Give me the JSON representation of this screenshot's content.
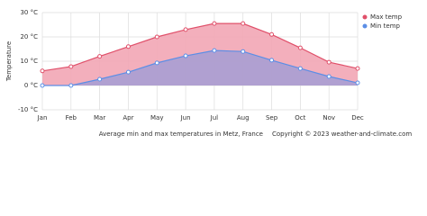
{
  "chart_data": {
    "type": "line",
    "y_label": "Temperature",
    "caption": "Average min and max temperatures in Metz, France",
    "copyright": "Copyright © 2023  weather-and-climate.com",
    "categories": [
      "Jan",
      "Feb",
      "Mar",
      "Apr",
      "May",
      "Jun",
      "Jul",
      "Aug",
      "Sep",
      "Oct",
      "Nov",
      "Dec"
    ],
    "series": [
      {
        "name": "Max temp",
        "color": "#e0506a",
        "fill": "#f2a6b5",
        "values": [
          6,
          7.8,
          12,
          16,
          20,
          23,
          25.5,
          25.5,
          21,
          15.5,
          9.6,
          7
        ]
      },
      {
        "name": "Min temp",
        "color": "#5b8ee6",
        "fill": "#a99fd3",
        "values": [
          0,
          0,
          2.6,
          5.5,
          9.3,
          12.2,
          14.4,
          14,
          10.4,
          7,
          3.7,
          1.1
        ]
      }
    ],
    "ylim": [
      -10,
      30
    ],
    "yticks": [
      {
        "value": -10,
        "label": "-10 °C"
      },
      {
        "value": 0,
        "label": "0 °C"
      },
      {
        "value": 10,
        "label": "10 °C"
      },
      {
        "value": 20,
        "label": "20 °C"
      },
      {
        "value": 30,
        "label": "30 °C"
      }
    ],
    "grid": true,
    "legend": "top-right"
  }
}
